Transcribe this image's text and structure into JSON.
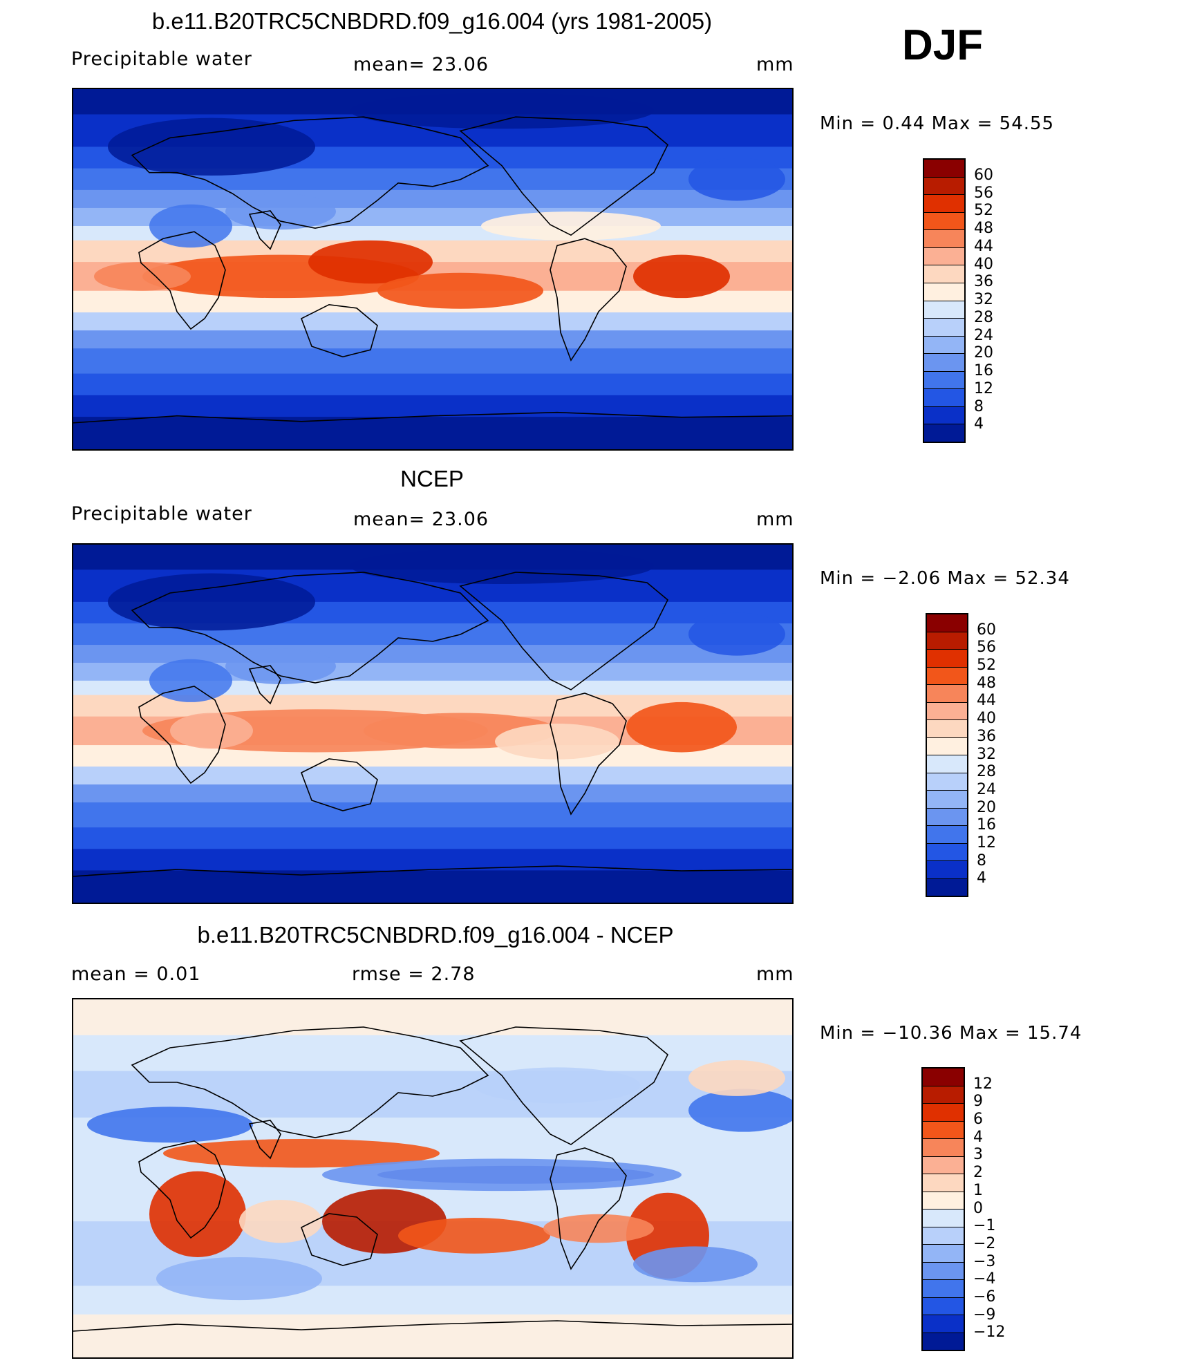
{
  "header": {
    "season": "DJF"
  },
  "panels": [
    {
      "id": "model",
      "title": "b.e11.B20TRC5CNBDRD.f09_g16.004 (yrs 1981-2005)",
      "left_label": "Precipitable  water",
      "mid_label": "mean=   23.06",
      "units": "mm",
      "minmax": "Min  =     0.44  Max  =    54.55",
      "colorbar_ticks": [
        "60",
        "56",
        "52",
        "48",
        "44",
        "40",
        "36",
        "32",
        "28",
        "24",
        "20",
        "16",
        "12",
        "8",
        "4"
      ],
      "colors": [
        "#8a0000",
        "#b81c00",
        "#e03000",
        "#f2561a",
        "#f7855a",
        "#fbb094",
        "#fdd8c0",
        "#fff0e0",
        "#d8e8fb",
        "#b8d0fa",
        "#93b5f6",
        "#6b95f0",
        "#4175ec",
        "#2356e4",
        "#0a30c8",
        "#001a96"
      ],
      "field_kind": "abs"
    },
    {
      "id": "obs",
      "title": "NCEP",
      "left_label": "Precipitable  water",
      "mid_label": "mean=   23.06",
      "units": "mm",
      "minmax": "Min  =   −2.06  Max  =    52.34",
      "colorbar_ticks": [
        "60",
        "56",
        "52",
        "48",
        "44",
        "40",
        "36",
        "32",
        "28",
        "24",
        "20",
        "16",
        "12",
        "8",
        "4"
      ],
      "colors": [
        "#8a0000",
        "#b81c00",
        "#e03000",
        "#f2561a",
        "#f7855a",
        "#fbb094",
        "#fdd8c0",
        "#fff0e0",
        "#d8e8fb",
        "#b8d0fa",
        "#93b5f6",
        "#6b95f0",
        "#4175ec",
        "#2356e4",
        "#0a30c8",
        "#001a96"
      ],
      "field_kind": "abs"
    },
    {
      "id": "diff",
      "title": "b.e11.B20TRC5CNBDRD.f09_g16.004 - NCEP",
      "left_label": "mean  =      0.01",
      "mid_label": "rmse  =      2.78",
      "units": "mm",
      "minmax": "Min  = −10.36  Max  =    15.74",
      "colorbar_ticks": [
        "12",
        "9",
        "6",
        "4",
        "3",
        "2",
        "1",
        "0",
        "−1",
        "−2",
        "−3",
        "−4",
        "−6",
        "−9",
        "−12"
      ],
      "colors": [
        "#8a0000",
        "#b81c00",
        "#e03000",
        "#f2561a",
        "#f7855a",
        "#fbb094",
        "#fdd8c0",
        "#fff0e0",
        "#d8e8fb",
        "#b8d0fa",
        "#93b5f6",
        "#6b95f0",
        "#4175ec",
        "#2356e4",
        "#0a30c8",
        "#001a96"
      ],
      "field_kind": "diff"
    }
  ]
}
